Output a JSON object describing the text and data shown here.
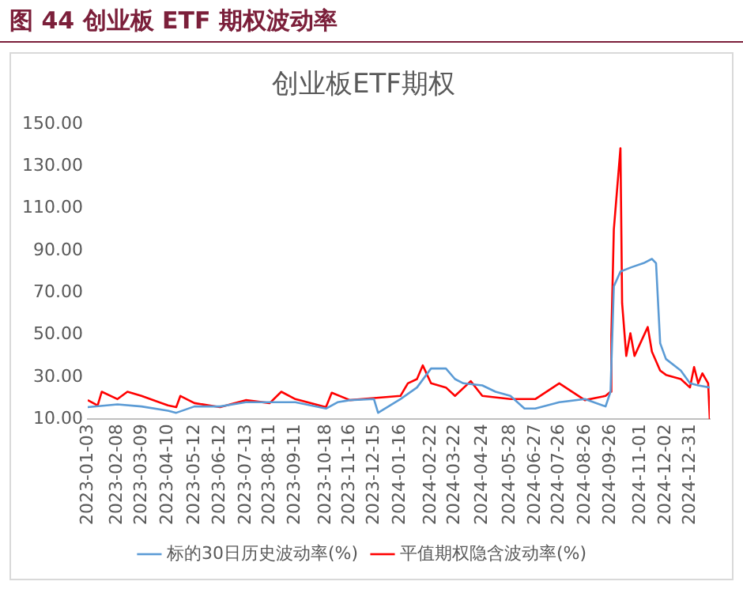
{
  "chart_data": {
    "type": "line",
    "title": "图 44 创业板 ETF 期权波动率",
    "subtitle": "创业板ETF期权",
    "ylim": [
      10,
      150
    ],
    "yticks": [
      {
        "value": 10,
        "label": "10.00"
      },
      {
        "value": 30,
        "label": "30.00"
      },
      {
        "value": 50,
        "label": "50.00"
      },
      {
        "value": 70,
        "label": "70.00"
      },
      {
        "value": 90,
        "label": "90.00"
      },
      {
        "value": 110,
        "label": "110.00"
      },
      {
        "value": 130,
        "label": "130.00"
      },
      {
        "value": 150,
        "label": "150.00"
      }
    ],
    "xlim": [
      "2023-01-03",
      "2025-01-24"
    ],
    "xticks": [
      "2023-01-03",
      "2023-02-08",
      "2023-03-09",
      "2023-04-10",
      "2023-05-12",
      "2023-06-12",
      "2023-07-13",
      "2023-08-11",
      "2023-09-11",
      "2023-10-18",
      "2023-11-16",
      "2023-12-15",
      "2024-01-16",
      "2024-02-22",
      "2024-03-22",
      "2024-04-24",
      "2024-05-28",
      "2024-06-27",
      "2024-07-26",
      "2024-08-26",
      "2024-09-26",
      "2024-11-01",
      "2024-12-02",
      "2024-12-31"
    ],
    "grid": false,
    "legend": "bottom",
    "marker": "none",
    "line_style": "solid",
    "series": [
      {
        "name": "标的30日历史波动率(%)",
        "color": "#5b9bd5",
        "x": [
          "2023-01-03",
          "2023-02-08",
          "2023-03-09",
          "2023-04-10",
          "2023-04-20",
          "2023-05-12",
          "2023-06-12",
          "2023-07-13",
          "2023-08-11",
          "2023-09-11",
          "2023-10-18",
          "2023-11-01",
          "2023-11-16",
          "2023-12-15",
          "2023-12-20",
          "2024-01-16",
          "2024-02-05",
          "2024-02-22",
          "2024-03-11",
          "2024-03-22",
          "2024-04-01",
          "2024-04-24",
          "2024-05-10",
          "2024-05-28",
          "2024-06-14",
          "2024-06-27",
          "2024-07-26",
          "2024-08-26",
          "2024-09-20",
          "2024-09-26",
          "2024-09-30",
          "2024-10-08",
          "2024-10-21",
          "2024-11-05",
          "2024-11-15",
          "2024-11-20",
          "2024-11-25",
          "2024-12-02",
          "2024-12-20",
          "2024-12-31",
          "2025-01-10",
          "2025-01-24"
        ],
        "values": [
          15.7,
          17,
          16,
          14,
          13,
          16,
          16,
          18,
          18,
          18,
          15,
          18,
          19,
          19.5,
          13,
          19.5,
          25,
          34,
          34,
          29,
          27,
          26,
          23,
          21,
          15,
          15,
          18,
          19.5,
          16,
          23,
          73,
          80,
          82,
          84,
          86,
          84,
          46,
          38.5,
          33,
          27,
          26,
          25
        ]
      },
      {
        "name": "平值期权隐含波动率(%)",
        "color": "#ff0000",
        "x": [
          "2023-01-03",
          "2023-01-15",
          "2023-01-20",
          "2023-02-08",
          "2023-02-20",
          "2023-03-09",
          "2023-04-10",
          "2023-04-20",
          "2023-04-25",
          "2023-05-12",
          "2023-06-12",
          "2023-07-13",
          "2023-08-11",
          "2023-08-25",
          "2023-09-11",
          "2023-10-18",
          "2023-10-25",
          "2023-11-16",
          "2023-12-15",
          "2024-01-16",
          "2024-01-25",
          "2024-02-05",
          "2024-02-12",
          "2024-02-22",
          "2024-03-11",
          "2024-03-22",
          "2024-04-10",
          "2024-04-24",
          "2024-05-28",
          "2024-06-27",
          "2024-07-26",
          "2024-08-26",
          "2024-09-20",
          "2024-09-26",
          "2024-09-27",
          "2024-09-30",
          "2024-10-08",
          "2024-10-10",
          "2024-10-15",
          "2024-10-20",
          "2024-10-25",
          "2024-11-01",
          "2024-11-10",
          "2024-11-15",
          "2024-11-25",
          "2024-12-02",
          "2024-12-20",
          "2024-12-31",
          "2025-01-05",
          "2025-01-10",
          "2025-01-15",
          "2025-01-22",
          "2025-01-24"
        ],
        "values": [
          19,
          16.5,
          23,
          19.5,
          23,
          21,
          16.5,
          15.7,
          21,
          17.6,
          15.7,
          19,
          17.6,
          23,
          19.5,
          15.7,
          22.5,
          19,
          20,
          21,
          27,
          29,
          35.5,
          27,
          25,
          21,
          28,
          21,
          19.5,
          19.5,
          27,
          19,
          21,
          23,
          50,
          100,
          138.5,
          65,
          40,
          50.7,
          40,
          46,
          53.7,
          42,
          33,
          31,
          29,
          25,
          34.7,
          27,
          31.7,
          27,
          10
        ]
      }
    ]
  }
}
